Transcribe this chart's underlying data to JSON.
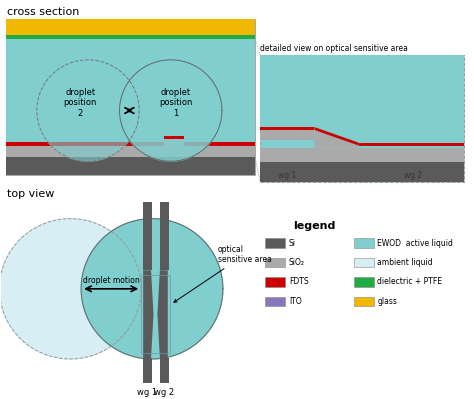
{
  "bg_color": "#ffffff",
  "colors": {
    "si": "#5a5a5a",
    "sio2": "#aaaaaa",
    "fdts": "#cc0000",
    "ito": "#8877bb",
    "ewod_liquid": "#80cece",
    "ambient_liquid": "#d8eef5",
    "dielectric": "#22aa44",
    "glass": "#f0b800"
  },
  "title_cross": "cross section",
  "title_top": "top view",
  "legend_title": "legend",
  "legend_items_left": [
    [
      "Si",
      "#5a5a5a"
    ],
    [
      "SiO₂",
      "#aaaaaa"
    ],
    [
      "FDTS",
      "#cc0000"
    ],
    [
      "ITO",
      "#8877bb"
    ]
  ],
  "legend_items_right": [
    [
      "EWOD  active liquid",
      "#80cece"
    ],
    [
      "ambient liquid",
      "#d8eef5"
    ],
    [
      "dielectric + PTFE",
      "#22aa44"
    ],
    [
      "glass",
      "#f0b800"
    ]
  ],
  "detail_title": "detailed view on optical sensitive area",
  "wg1_label": "wg 1",
  "wg2_label": "wg 2",
  "droplet_pos2": "droplet\nposition\n2",
  "droplet_pos1": "droplet\nposition\n1",
  "droplet_motion": "droplet motion",
  "optical_sensitive_area": "optical\nsensitive area"
}
